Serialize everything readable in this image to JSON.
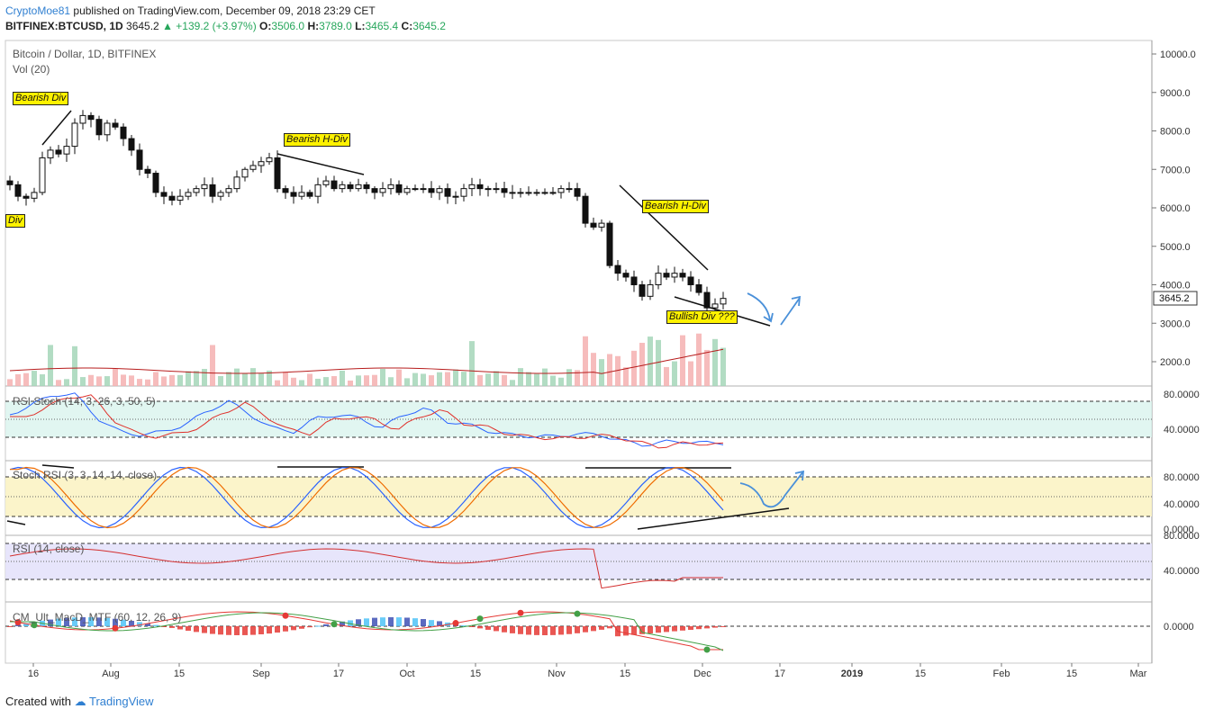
{
  "header": {
    "author": "CryptoMoe81",
    "published": "published on TradingView.com, December 09, 2018 23:29 CET",
    "symbol": "BITFINEX:BTCUSD, 1D",
    "last": "3645.2",
    "change": "+139.2 (+3.97%)",
    "o_label": "O:",
    "o": "3506.0",
    "h_label": "H:",
    "h": "3789.0",
    "l_label": "L:",
    "l": "3465.4",
    "c_label": "C:",
    "c": "3645.2"
  },
  "main_legend": "Bitcoin / Dollar, 1D, BITFINEX",
  "vol_legend": "Vol (20)",
  "panes": {
    "rsi_stoch": "RSI Stoch (14, 3, 26, 3, 50, 5)",
    "stoch_rsi": "Stoch RSI (3, 3, 14, 14, close)",
    "rsi": "RSI (14, close)",
    "macd": "CM_Ult_MacD_MTF (60, 12, 26, 9)"
  },
  "annotations": [
    "Bearish Div",
    "Bearish H-Div",
    "Bearish H-Div",
    "Bullish Div ???",
    "Div"
  ],
  "footer": {
    "created": "Created with",
    "brand": "TradingView"
  },
  "colors": {
    "up": "#26a65b",
    "down": "#ef5350",
    "blue": "#2962ff",
    "red": "#e0302a",
    "arrow": "#4a90d9"
  },
  "chart_data": {
    "type": "candlestick",
    "x_ticks": [
      "16",
      "Aug",
      "15",
      "Sep",
      "17",
      "Oct",
      "15",
      "Nov",
      "15",
      "Dec",
      "17",
      "2019",
      "15",
      "Feb",
      "15",
      "Mar"
    ],
    "y_ticks": [
      "10000.0",
      "9000.0",
      "8000.0",
      "7000.0",
      "6000.0",
      "5000.0",
      "4000.0",
      "3000.0",
      "2000.0"
    ],
    "ylim": [
      1500,
      10300
    ],
    "last_price_label": "3645.2",
    "close_series_approx": [
      6600,
      6300,
      6250,
      6400,
      7300,
      7500,
      7400,
      7600,
      8200,
      8400,
      8300,
      7900,
      8200,
      8100,
      7800,
      7500,
      7000,
      6900,
      6400,
      6300,
      6200,
      6300,
      6400,
      6500,
      6600,
      6300,
      6400,
      6500,
      6800,
      7000,
      7100,
      7200,
      7300,
      6500,
      6400,
      6300,
      6400,
      6300,
      6600,
      6700,
      6500,
      6600,
      6500,
      6600,
      6500,
      6400,
      6500,
      6600,
      6400,
      6500,
      6500,
      6500,
      6400,
      6500,
      6300,
      6300,
      6500,
      6600,
      6500,
      6500,
      6500,
      6400,
      6400,
      6400,
      6400,
      6400,
      6400,
      6400,
      6500,
      6500,
      6300,
      5600,
      5500,
      5600,
      4500,
      4300,
      4200,
      4000,
      3700,
      4000,
      4300,
      4200,
      4300,
      4200,
      4000,
      3800,
      3400,
      3500,
      3645.2
    ],
    "volume_axis_ticks": [],
    "rsi_stoch": {
      "levels": [
        "80.0000",
        "40.0000"
      ],
      "ylim": [
        0,
        100
      ],
      "k_color": "#2962ff",
      "d_color": "#e0302a"
    },
    "stoch_rsi": {
      "levels": [
        "80.0000",
        "40.0000",
        "0.0000"
      ],
      "ylim": [
        0,
        100
      ]
    },
    "rsi": {
      "levels": [
        "80.0000",
        "40.0000"
      ],
      "ylim": [
        20,
        85
      ]
    },
    "macd": {
      "levels": [
        "0.0000"
      ]
    }
  }
}
